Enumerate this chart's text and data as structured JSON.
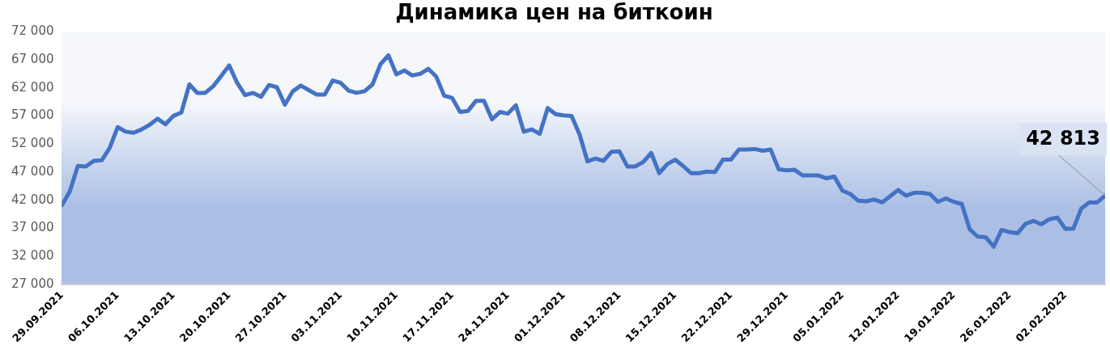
{
  "chart_data": {
    "type": "line",
    "title": "Динамика цен на биткоин",
    "x": [
      "2021-09-29",
      "2021-09-30",
      "2021-10-01",
      "2021-10-02",
      "2021-10-03",
      "2021-10-04",
      "2021-10-05",
      "2021-10-06",
      "2021-10-07",
      "2021-10-08",
      "2021-10-09",
      "2021-10-10",
      "2021-10-11",
      "2021-10-12",
      "2021-10-13",
      "2021-10-14",
      "2021-10-15",
      "2021-10-16",
      "2021-10-17",
      "2021-10-18",
      "2021-10-19",
      "2021-10-20",
      "2021-10-21",
      "2021-10-22",
      "2021-10-23",
      "2021-10-24",
      "2021-10-25",
      "2021-10-26",
      "2021-10-27",
      "2021-10-28",
      "2021-10-29",
      "2021-10-30",
      "2021-10-31",
      "2021-11-01",
      "2021-11-02",
      "2021-11-03",
      "2021-11-04",
      "2021-11-05",
      "2021-11-06",
      "2021-11-07",
      "2021-11-08",
      "2021-11-09",
      "2021-11-10",
      "2021-11-11",
      "2021-11-12",
      "2021-11-13",
      "2021-11-14",
      "2021-11-15",
      "2021-11-16",
      "2021-11-17",
      "2021-11-18",
      "2021-11-19",
      "2021-11-20",
      "2021-11-21",
      "2021-11-22",
      "2021-11-23",
      "2021-11-24",
      "2021-11-25",
      "2021-11-26",
      "2021-11-27",
      "2021-11-28",
      "2021-11-29",
      "2021-11-30",
      "2021-12-01",
      "2021-12-02",
      "2021-12-03",
      "2021-12-04",
      "2021-12-05",
      "2021-12-06",
      "2021-12-07",
      "2021-12-08",
      "2021-12-09",
      "2021-12-10",
      "2021-12-11",
      "2021-12-12",
      "2021-12-13",
      "2021-12-14",
      "2021-12-15",
      "2021-12-16",
      "2021-12-17",
      "2021-12-18",
      "2021-12-19",
      "2021-12-20",
      "2021-12-21",
      "2021-12-22",
      "2021-12-23",
      "2021-12-24",
      "2021-12-25",
      "2021-12-26",
      "2021-12-27",
      "2021-12-28",
      "2021-12-29",
      "2021-12-30",
      "2021-12-31",
      "2022-01-01",
      "2022-01-02",
      "2022-01-03",
      "2022-01-04",
      "2022-01-05",
      "2022-01-06",
      "2022-01-07",
      "2022-01-08",
      "2022-01-09",
      "2022-01-10",
      "2022-01-11",
      "2022-01-12",
      "2022-01-13",
      "2022-01-14",
      "2022-01-15",
      "2022-01-16",
      "2022-01-17",
      "2022-01-18",
      "2022-01-19",
      "2022-01-20",
      "2022-01-21",
      "2022-01-22",
      "2022-01-23",
      "2022-01-24",
      "2022-01-25",
      "2022-01-26",
      "2022-01-27",
      "2022-01-28",
      "2022-01-29",
      "2022-01-30",
      "2022-01-31",
      "2022-02-01",
      "2022-02-02",
      "2022-02-03",
      "2022-02-04",
      "2022-02-05",
      "2022-02-06",
      "2022-02-07"
    ],
    "series": [
      {
        "color": "#4472c4",
        "values": [
          41100,
          43600,
          48100,
          48000,
          49000,
          49100,
          51300,
          55000,
          54200,
          54000,
          54600,
          55400,
          56500,
          55500,
          57000,
          57600,
          62600,
          61100,
          61100,
          62300,
          64100,
          66000,
          62900,
          60700,
          61100,
          60400,
          62500,
          62100,
          59000,
          61400,
          62400,
          61600,
          60800,
          60800,
          63300,
          62900,
          61500,
          61100,
          61400,
          62600,
          66200,
          67800,
          64400,
          65100,
          64200,
          64500,
          65400,
          64000,
          60600,
          60200,
          57700,
          57900,
          59700,
          59700,
          56400,
          57700,
          57400,
          58900,
          54200,
          54600,
          53800,
          58400,
          57300,
          57100,
          57000,
          53700,
          48900,
          49400,
          49000,
          50600,
          50700,
          48000,
          48000,
          48800,
          50400,
          46800,
          48400,
          49200,
          48100,
          46800,
          46800,
          47100,
          47000,
          49200,
          49200,
          51000,
          51000,
          51100,
          50800,
          51000,
          47500,
          47300,
          47400,
          46400,
          46400,
          46400,
          45900,
          46200,
          43700,
          43100,
          41900,
          41800,
          42100,
          41600,
          42700,
          43800,
          42800,
          43300,
          43300,
          43100,
          41700,
          42300,
          41700,
          41300,
          36800,
          35500,
          35400,
          33700,
          36700,
          36300,
          36100,
          37800,
          38300,
          37700,
          38600,
          38900,
          36900,
          36900,
          40500,
          41600,
          41600,
          42813
        ],
        "value_labels": [
          null,
          null,
          null,
          null,
          null,
          null,
          null,
          null,
          null,
          null,
          null,
          null,
          null,
          null,
          null,
          null,
          null,
          null,
          null,
          null,
          null,
          null,
          null,
          null,
          null,
          null,
          null,
          null,
          null,
          null,
          null,
          null,
          null,
          null,
          null,
          null,
          null,
          null,
          null,
          null,
          null,
          null,
          null,
          null,
          null,
          null,
          null,
          null,
          null,
          null,
          null,
          null,
          null,
          null,
          null,
          null,
          null,
          null,
          null,
          null,
          null,
          null,
          null,
          null,
          null,
          null,
          null,
          null,
          null,
          null,
          null,
          null,
          null,
          null,
          null,
          null,
          null,
          null,
          null,
          null,
          null,
          null,
          null,
          null,
          null,
          null,
          null,
          null,
          null,
          null,
          null,
          null,
          null,
          null,
          null,
          null,
          null,
          null,
          null,
          null,
          null,
          null,
          null,
          null,
          null,
          null,
          null,
          null,
          null,
          null,
          null,
          null,
          null,
          null,
          null,
          null,
          null,
          null,
          null,
          null,
          null,
          null,
          null,
          null,
          null,
          null,
          null,
          null,
          null,
          null,
          null,
          "42 813"
        ]
      }
    ],
    "xlim": [
      "2021-09-29",
      "2022-02-07"
    ],
    "xticks": [
      {
        "value": "2021-09-29",
        "label": "29.09.2021"
      },
      {
        "value": "2021-10-06",
        "label": "06.10.2021"
      },
      {
        "value": "2021-10-13",
        "label": "13.10.2021"
      },
      {
        "value": "2021-10-20",
        "label": "20.10.2021"
      },
      {
        "value": "2021-10-27",
        "label": "27.10.2021"
      },
      {
        "value": "2021-11-03",
        "label": "03.11.2021"
      },
      {
        "value": "2021-11-10",
        "label": "10.11.2021"
      },
      {
        "value": "2021-11-17",
        "label": "17.11.2021"
      },
      {
        "value": "2021-11-24",
        "label": "24.11.2021"
      },
      {
        "value": "2021-12-01",
        "label": "01.12.2021"
      },
      {
        "value": "2021-12-08",
        "label": "08.12.2021"
      },
      {
        "value": "2021-12-15",
        "label": "15.12.2021"
      },
      {
        "value": "2021-12-22",
        "label": "22.12.2021"
      },
      {
        "value": "2021-12-29",
        "label": "29.12.2021"
      },
      {
        "value": "2022-01-05",
        "label": "05.01.2022"
      },
      {
        "value": "2022-01-12",
        "label": "12.01.2022"
      },
      {
        "value": "2022-01-19",
        "label": "19.01.2022"
      },
      {
        "value": "2022-01-26",
        "label": "26.01.2022"
      },
      {
        "value": "2022-02-02",
        "label": "02.02.2022"
      }
    ],
    "ylim": [
      27000,
      72000
    ],
    "yticks": [
      {
        "value": 27000,
        "label": "27 000"
      },
      {
        "value": 32000,
        "label": "32 000"
      },
      {
        "value": 37000,
        "label": "37 000"
      },
      {
        "value": 42000,
        "label": "42 000"
      },
      {
        "value": 47000,
        "label": "47 000"
      },
      {
        "value": 52000,
        "label": "52 000"
      },
      {
        "value": 57000,
        "label": "57 000"
      },
      {
        "value": 62000,
        "label": "62 000"
      },
      {
        "value": 67000,
        "label": "67 000"
      },
      {
        "value": 72000,
        "label": "72 000"
      }
    ],
    "marker": "none",
    "line_style": "solid"
  }
}
